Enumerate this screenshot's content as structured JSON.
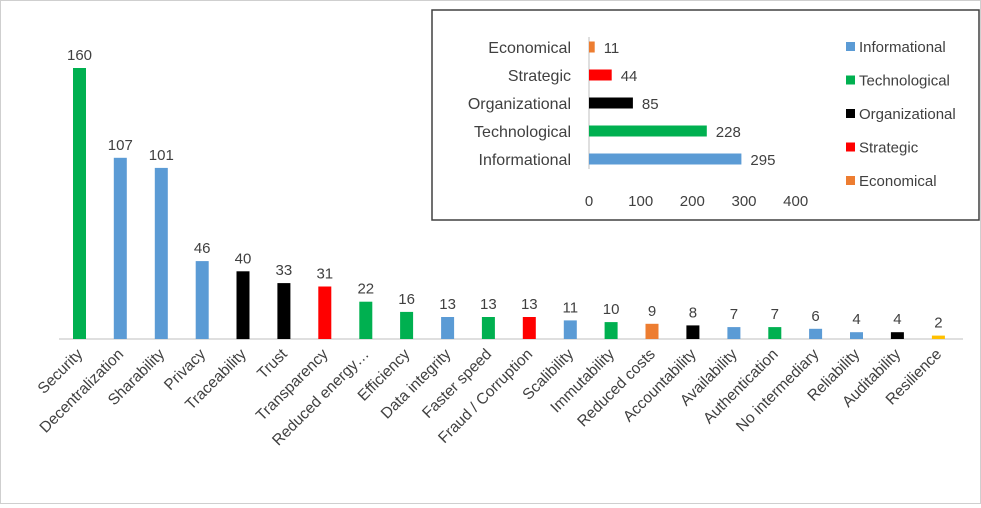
{
  "chart_data": [
    {
      "type": "bar",
      "categories": [
        "Security",
        "Decentralization",
        "Sharability",
        "Privacy",
        "Traceability",
        "Trust",
        "Transparency",
        "Reduced energy…",
        "Efficiency",
        "Data integrity",
        "Faster speed",
        "Fraud / Corruption",
        "Scalibility",
        "Immutability",
        "Reduced costs",
        "Accountability",
        "Availability",
        "Authentication",
        "No intermediary",
        "Reliability",
        "Auditability",
        "Resilience"
      ],
      "values": [
        160,
        107,
        101,
        46,
        40,
        33,
        31,
        22,
        16,
        13,
        13,
        13,
        11,
        10,
        9,
        8,
        7,
        7,
        6,
        4,
        4,
        2
      ],
      "bar_groups": [
        "Technological",
        "Informational",
        "Informational",
        "Informational",
        "Organizational",
        "Organizational",
        "Strategic",
        "Technological",
        "Technological",
        "Informational",
        "Technological",
        "Strategic",
        "Informational",
        "Technological",
        "Economical",
        "Organizational",
        "Informational",
        "Technological",
        "Informational",
        "Informational",
        "Organizational",
        "Resilience"
      ],
      "data_labels": [
        "160",
        "107",
        "101",
        "46",
        "40",
        "33",
        "31",
        "22",
        "16",
        "13",
        "13",
        "13",
        "11",
        "10",
        "9",
        "8",
        "7",
        "7",
        "6",
        "4",
        "4",
        "2"
      ],
      "ylim": [
        0,
        165
      ],
      "grid": false
    },
    {
      "type": "bar",
      "orientation": "horizontal",
      "categories": [
        "Economical",
        "Strategic",
        "Organizational",
        "Technological",
        "Informational"
      ],
      "values": [
        11,
        44,
        85,
        228,
        295
      ],
      "data_labels": [
        "11",
        "44",
        "85",
        "228",
        "295"
      ],
      "xlim": [
        0,
        400
      ],
      "xticks": [
        "0",
        "100",
        "200",
        "300",
        "400"
      ],
      "grid": false,
      "legend": {
        "placement": "right",
        "entries": [
          {
            "name": "Informational",
            "color": "#5b9bd5"
          },
          {
            "name": "Technological",
            "color": "#00b050"
          },
          {
            "name": "Organizational",
            "color": "#000000"
          },
          {
            "name": "Strategic",
            "color": "#ff0000"
          },
          {
            "name": "Economical",
            "color": "#ed7d31"
          }
        ]
      }
    }
  ],
  "colors": {
    "Informational": "#5b9bd5",
    "Technological": "#00b050",
    "Organizational": "#000000",
    "Strategic": "#ff0000",
    "Economical": "#ed7d31",
    "Resilience": "#ffc000",
    "axis": "#bfbfbf",
    "text": "#404040"
  }
}
